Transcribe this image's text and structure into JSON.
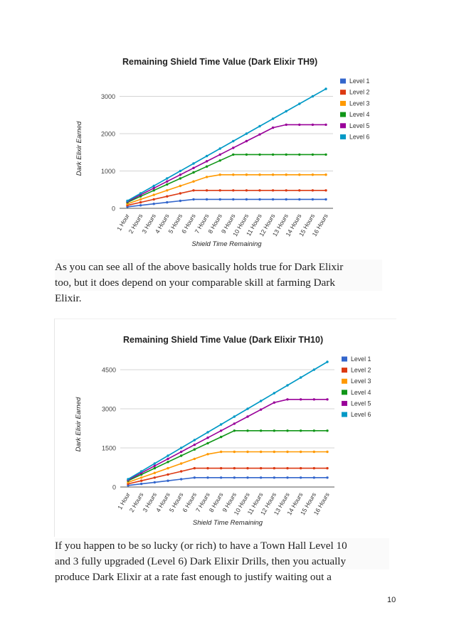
{
  "chart_data": [
    {
      "type": "line",
      "title": "Remaining Shield Time Value (Dark Elixir TH9)",
      "xlabel": "Shield Time Remaining",
      "ylabel": "Dark Elixir Earned",
      "ylim": [
        0,
        3200
      ],
      "yticks": [
        0,
        1000,
        2000,
        3000
      ],
      "categories": [
        "1 Hour",
        "2 Hours",
        "3 Hours",
        "4 Hours",
        "5 Hours",
        "6 Hours",
        "7 Hours",
        "8 Hours",
        "9 Hours",
        "10 Hours",
        "11 Hours",
        "12 Hours",
        "13 Hours",
        "14 Hours",
        "15 Hours",
        "16 Hours"
      ],
      "legend_position": "right",
      "series": [
        {
          "name": "Level 1",
          "color": "#3366cc",
          "values": [
            40,
            80,
            120,
            160,
            200,
            240,
            240,
            240,
            240,
            240,
            240,
            240,
            240,
            240,
            240,
            240
          ]
        },
        {
          "name": "Level 2",
          "color": "#dc3912",
          "values": [
            80,
            160,
            240,
            320,
            400,
            480,
            480,
            480,
            480,
            480,
            480,
            480,
            480,
            480,
            480,
            480
          ]
        },
        {
          "name": "Level 3",
          "color": "#ff9900",
          "values": [
            120,
            240,
            360,
            480,
            600,
            720,
            840,
            900,
            900,
            900,
            900,
            900,
            900,
            900,
            900,
            900
          ]
        },
        {
          "name": "Level 4",
          "color": "#109618",
          "values": [
            160,
            320,
            480,
            640,
            800,
            960,
            1120,
            1280,
            1440,
            1440,
            1440,
            1440,
            1440,
            1440,
            1440,
            1440
          ]
        },
        {
          "name": "Level 5",
          "color": "#990099",
          "values": [
            180,
            360,
            540,
            720,
            900,
            1080,
            1260,
            1440,
            1620,
            1800,
            1980,
            2160,
            2240,
            2240,
            2240,
            2240
          ]
        },
        {
          "name": "Level 6",
          "color": "#0099c6",
          "values": [
            200,
            400,
            600,
            800,
            1000,
            1200,
            1400,
            1600,
            1800,
            2000,
            2200,
            2400,
            2600,
            2800,
            3000,
            3200
          ]
        }
      ]
    },
    {
      "type": "line",
      "title": "Remaining Shield Time Value (Dark Elixir TH10)",
      "xlabel": "Shield Time Remaining",
      "ylabel": "Dark Elixir Earned",
      "ylim": [
        0,
        4800
      ],
      "yticks": [
        0,
        1500,
        3000,
        4500
      ],
      "categories": [
        "1 Hour",
        "2 Hours",
        "3 Hours",
        "4 Hours",
        "5 Hours",
        "6 Hours",
        "7 Hours",
        "8 Hours",
        "9 Hours",
        "10 Hours",
        "11 Hours",
        "12 Hours",
        "13 Hours",
        "14 Hours",
        "15 Hours",
        "16 Hours"
      ],
      "legend_position": "right",
      "series": [
        {
          "name": "Level 1",
          "color": "#3366cc",
          "values": [
            60,
            120,
            180,
            240,
            300,
            360,
            360,
            360,
            360,
            360,
            360,
            360,
            360,
            360,
            360,
            360
          ]
        },
        {
          "name": "Level 2",
          "color": "#dc3912",
          "values": [
            120,
            240,
            360,
            480,
            600,
            720,
            720,
            720,
            720,
            720,
            720,
            720,
            720,
            720,
            720,
            720
          ]
        },
        {
          "name": "Level 3",
          "color": "#ff9900",
          "values": [
            180,
            360,
            540,
            720,
            900,
            1080,
            1260,
            1350,
            1350,
            1350,
            1350,
            1350,
            1350,
            1350,
            1350,
            1350
          ]
        },
        {
          "name": "Level 4",
          "color": "#109618",
          "values": [
            240,
            480,
            720,
            960,
            1200,
            1440,
            1680,
            1920,
            2160,
            2160,
            2160,
            2160,
            2160,
            2160,
            2160,
            2160
          ]
        },
        {
          "name": "Level 5",
          "color": "#990099",
          "values": [
            270,
            540,
            810,
            1080,
            1350,
            1620,
            1890,
            2160,
            2430,
            2700,
            2970,
            3240,
            3360,
            3360,
            3360,
            3360
          ]
        },
        {
          "name": "Level 6",
          "color": "#0099c6",
          "values": [
            300,
            600,
            900,
            1200,
            1500,
            1800,
            2100,
            2400,
            2700,
            3000,
            3300,
            3600,
            3900,
            4200,
            4500,
            4800
          ]
        }
      ]
    }
  ],
  "text": {
    "para1_lines": [
      "As you can see all of the above basically holds true for Dark Elixir",
      "too, but it does depend on your comparable skill at farming Dark",
      "Elixir."
    ],
    "para2_lines": [
      "If you happen to be so lucky (or rich) to have a Town Hall Level 10",
      "and 3 fully upgraded (Level 6) Dark Elixir Drills, then you actually",
      "produce Dark Elixir at a rate fast enough to justify waiting out a"
    ],
    "page_number": "10"
  }
}
